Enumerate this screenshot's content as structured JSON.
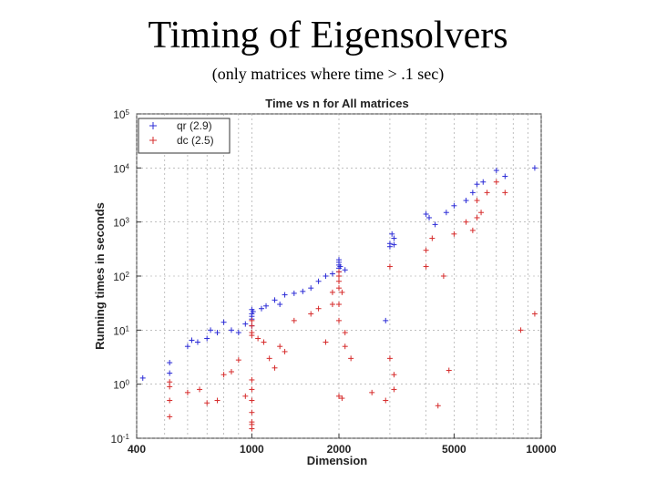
{
  "slide": {
    "title": "Timing of Eigensolvers",
    "subtitle": "(only matrices where time > .1 sec)"
  },
  "chart_data": {
    "type": "scatter",
    "title": "Time vs n for All matrices",
    "xlabel": "Dimension",
    "ylabel": "Running times in seconds",
    "x_scale": "log",
    "y_scale": "log",
    "xlim": [
      400,
      10000
    ],
    "ylim": [
      0.1,
      100000
    ],
    "grid": true,
    "legend_position": "top-left",
    "x_ticks": [
      {
        "value": 400,
        "label": "400"
      },
      {
        "value": 1000,
        "label": "1000"
      },
      {
        "value": 2000,
        "label": "2000"
      },
      {
        "value": 5000,
        "label": "5000"
      },
      {
        "value": 10000,
        "label": "10000"
      }
    ],
    "y_ticks": [
      {
        "value": 0.1,
        "base": "10",
        "exp": "-1"
      },
      {
        "value": 1,
        "base": "10",
        "exp": "0"
      },
      {
        "value": 10,
        "base": "10",
        "exp": "1"
      },
      {
        "value": 100,
        "base": "10",
        "exp": "2"
      },
      {
        "value": 1000,
        "base": "10",
        "exp": "3"
      },
      {
        "value": 10000,
        "base": "10",
        "exp": "4"
      },
      {
        "value": 100000,
        "base": "10",
        "exp": "5"
      }
    ],
    "series": [
      {
        "name": "qr (2.9)",
        "color": "#2b2bd6",
        "marker": "plus",
        "points": [
          [
            420,
            1.3
          ],
          [
            520,
            2.5
          ],
          [
            520,
            1.6
          ],
          [
            600,
            5
          ],
          [
            620,
            6.5
          ],
          [
            650,
            6
          ],
          [
            700,
            7
          ],
          [
            720,
            10
          ],
          [
            760,
            9
          ],
          [
            800,
            14
          ],
          [
            850,
            10
          ],
          [
            900,
            9
          ],
          [
            950,
            13
          ],
          [
            1000,
            20
          ],
          [
            1000,
            24
          ],
          [
            1000,
            18
          ],
          [
            1000,
            16
          ],
          [
            1000,
            12
          ],
          [
            1010,
            22
          ],
          [
            1080,
            25
          ],
          [
            1120,
            28
          ],
          [
            1200,
            36
          ],
          [
            1250,
            30
          ],
          [
            1300,
            45
          ],
          [
            1400,
            48
          ],
          [
            1500,
            52
          ],
          [
            1600,
            60
          ],
          [
            1700,
            80
          ],
          [
            1800,
            100
          ],
          [
            1900,
            110
          ],
          [
            2000,
            120
          ],
          [
            2000,
            140
          ],
          [
            2000,
            160
          ],
          [
            2000,
            180
          ],
          [
            2000,
            200
          ],
          [
            2020,
            150
          ],
          [
            2100,
            130
          ],
          [
            2900,
            15
          ],
          [
            3000,
            400
          ],
          [
            3000,
            350
          ],
          [
            3050,
            600
          ],
          [
            3100,
            380
          ],
          [
            3100,
            500
          ],
          [
            4000,
            1400
          ],
          [
            4100,
            1200
          ],
          [
            4300,
            900
          ],
          [
            4700,
            1500
          ],
          [
            5000,
            2000
          ],
          [
            5500,
            2500
          ],
          [
            5800,
            3500
          ],
          [
            6000,
            5000
          ],
          [
            6300,
            5500
          ],
          [
            7000,
            9000
          ],
          [
            7500,
            7000
          ],
          [
            9500,
            10000
          ]
        ]
      },
      {
        "name": "dc (2.5)",
        "color": "#d62b2b",
        "marker": "plus",
        "points": [
          [
            520,
            1.1
          ],
          [
            520,
            0.9
          ],
          [
            520,
            0.5
          ],
          [
            520,
            0.25
          ],
          [
            600,
            0.7
          ],
          [
            660,
            0.8
          ],
          [
            700,
            0.45
          ],
          [
            760,
            0.5
          ],
          [
            800,
            1.5
          ],
          [
            850,
            1.7
          ],
          [
            900,
            2.8
          ],
          [
            950,
            0.6
          ],
          [
            1000,
            0.3
          ],
          [
            1000,
            0.2
          ],
          [
            1000,
            0.18
          ],
          [
            1000,
            0.15
          ],
          [
            1000,
            0.5
          ],
          [
            1000,
            0.8
          ],
          [
            1000,
            1.2
          ],
          [
            1000,
            9
          ],
          [
            1000,
            12
          ],
          [
            1000,
            8
          ],
          [
            1000,
            15
          ],
          [
            1050,
            7
          ],
          [
            1100,
            6
          ],
          [
            1150,
            3
          ],
          [
            1200,
            2
          ],
          [
            1250,
            5
          ],
          [
            1300,
            4
          ],
          [
            1400,
            15
          ],
          [
            1600,
            20
          ],
          [
            1700,
            25
          ],
          [
            1800,
            6
          ],
          [
            1900,
            50
          ],
          [
            1900,
            30
          ],
          [
            2000,
            60
          ],
          [
            2000,
            80
          ],
          [
            2000,
            100
          ],
          [
            2000,
            120
          ],
          [
            2000,
            30
          ],
          [
            2000,
            15
          ],
          [
            2000,
            0.6
          ],
          [
            2050,
            0.55
          ],
          [
            2050,
            50
          ],
          [
            2100,
            9
          ],
          [
            2100,
            5
          ],
          [
            2200,
            3
          ],
          [
            2600,
            0.7
          ],
          [
            2900,
            0.5
          ],
          [
            3000,
            150
          ],
          [
            3000,
            3
          ],
          [
            3100,
            1.5
          ],
          [
            3100,
            0.8
          ],
          [
            4000,
            300
          ],
          [
            4000,
            150
          ],
          [
            4200,
            500
          ],
          [
            4400,
            0.4
          ],
          [
            4600,
            100
          ],
          [
            4800,
            1.8
          ],
          [
            5000,
            600
          ],
          [
            5500,
            1000
          ],
          [
            5800,
            700
          ],
          [
            6000,
            2500
          ],
          [
            6000,
            1200
          ],
          [
            6200,
            1500
          ],
          [
            6500,
            3500
          ],
          [
            7000,
            5500
          ],
          [
            7500,
            3500
          ],
          [
            8500,
            10
          ],
          [
            9500,
            20
          ]
        ]
      }
    ]
  }
}
